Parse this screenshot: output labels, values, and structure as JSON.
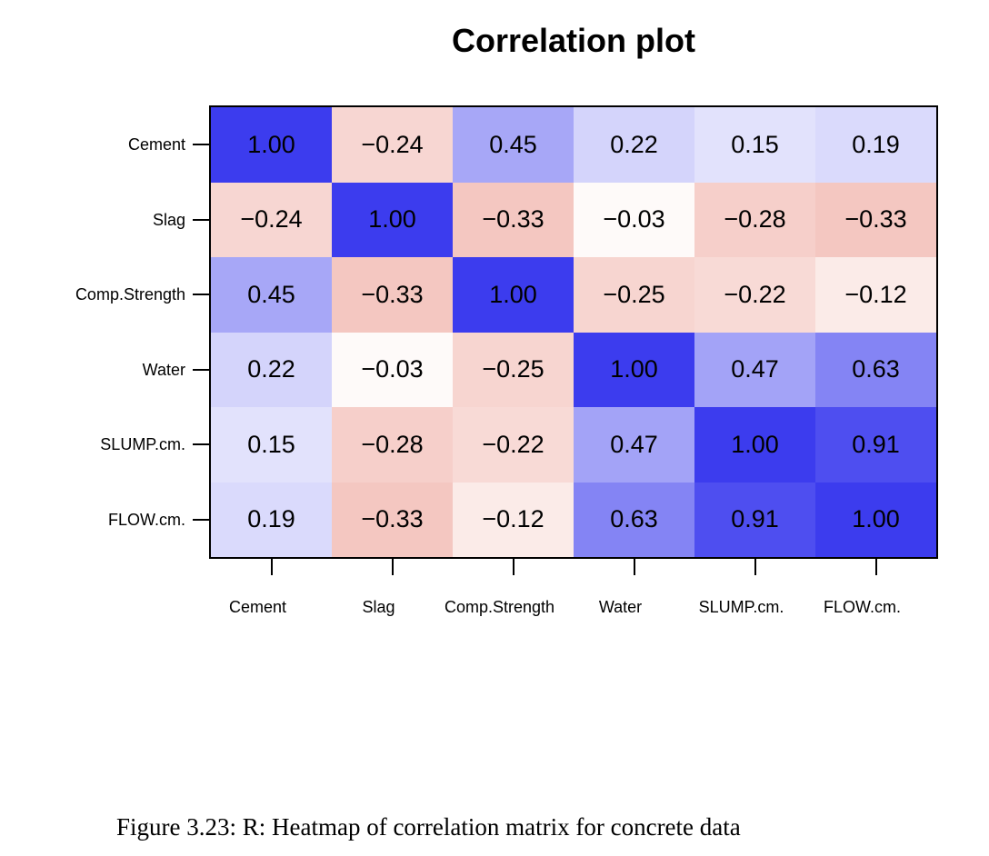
{
  "title": "Correlation plot",
  "caption": "Figure 3.23: R: Heatmap of correlation matrix for concrete data",
  "chart_data": {
    "type": "heatmap",
    "title": "Correlation plot",
    "row_categories": [
      "Cement",
      "Slag",
      "Comp.Strength",
      "Water",
      "SLUMP.cm.",
      "FLOW.cm."
    ],
    "col_categories": [
      "Cement",
      "Slag",
      "Comp.Strength",
      "Water",
      "SLUMP.cm.",
      "FLOW.cm."
    ],
    "matrix": [
      [
        1.0,
        -0.24,
        0.45,
        0.22,
        0.15,
        0.19
      ],
      [
        -0.24,
        1.0,
        -0.33,
        -0.03,
        -0.28,
        -0.33
      ],
      [
        0.45,
        -0.33,
        1.0,
        -0.25,
        -0.22,
        -0.12
      ],
      [
        0.22,
        -0.03,
        -0.25,
        1.0,
        0.47,
        0.63
      ],
      [
        0.15,
        -0.28,
        -0.22,
        0.47,
        1.0,
        0.91
      ],
      [
        0.19,
        -0.33,
        -0.12,
        0.63,
        0.91,
        1.0
      ]
    ],
    "value_range": [
      -1,
      1
    ],
    "cell_label_decimals": 2,
    "minus_sign": "−",
    "colors": {
      "positive_end": "#3C3CEE",
      "zero": "#FFFFFF",
      "negative_end": "#DE5543",
      "border": "#000000",
      "cell_text": "#000000"
    },
    "legend": "none",
    "grid": "off"
  }
}
